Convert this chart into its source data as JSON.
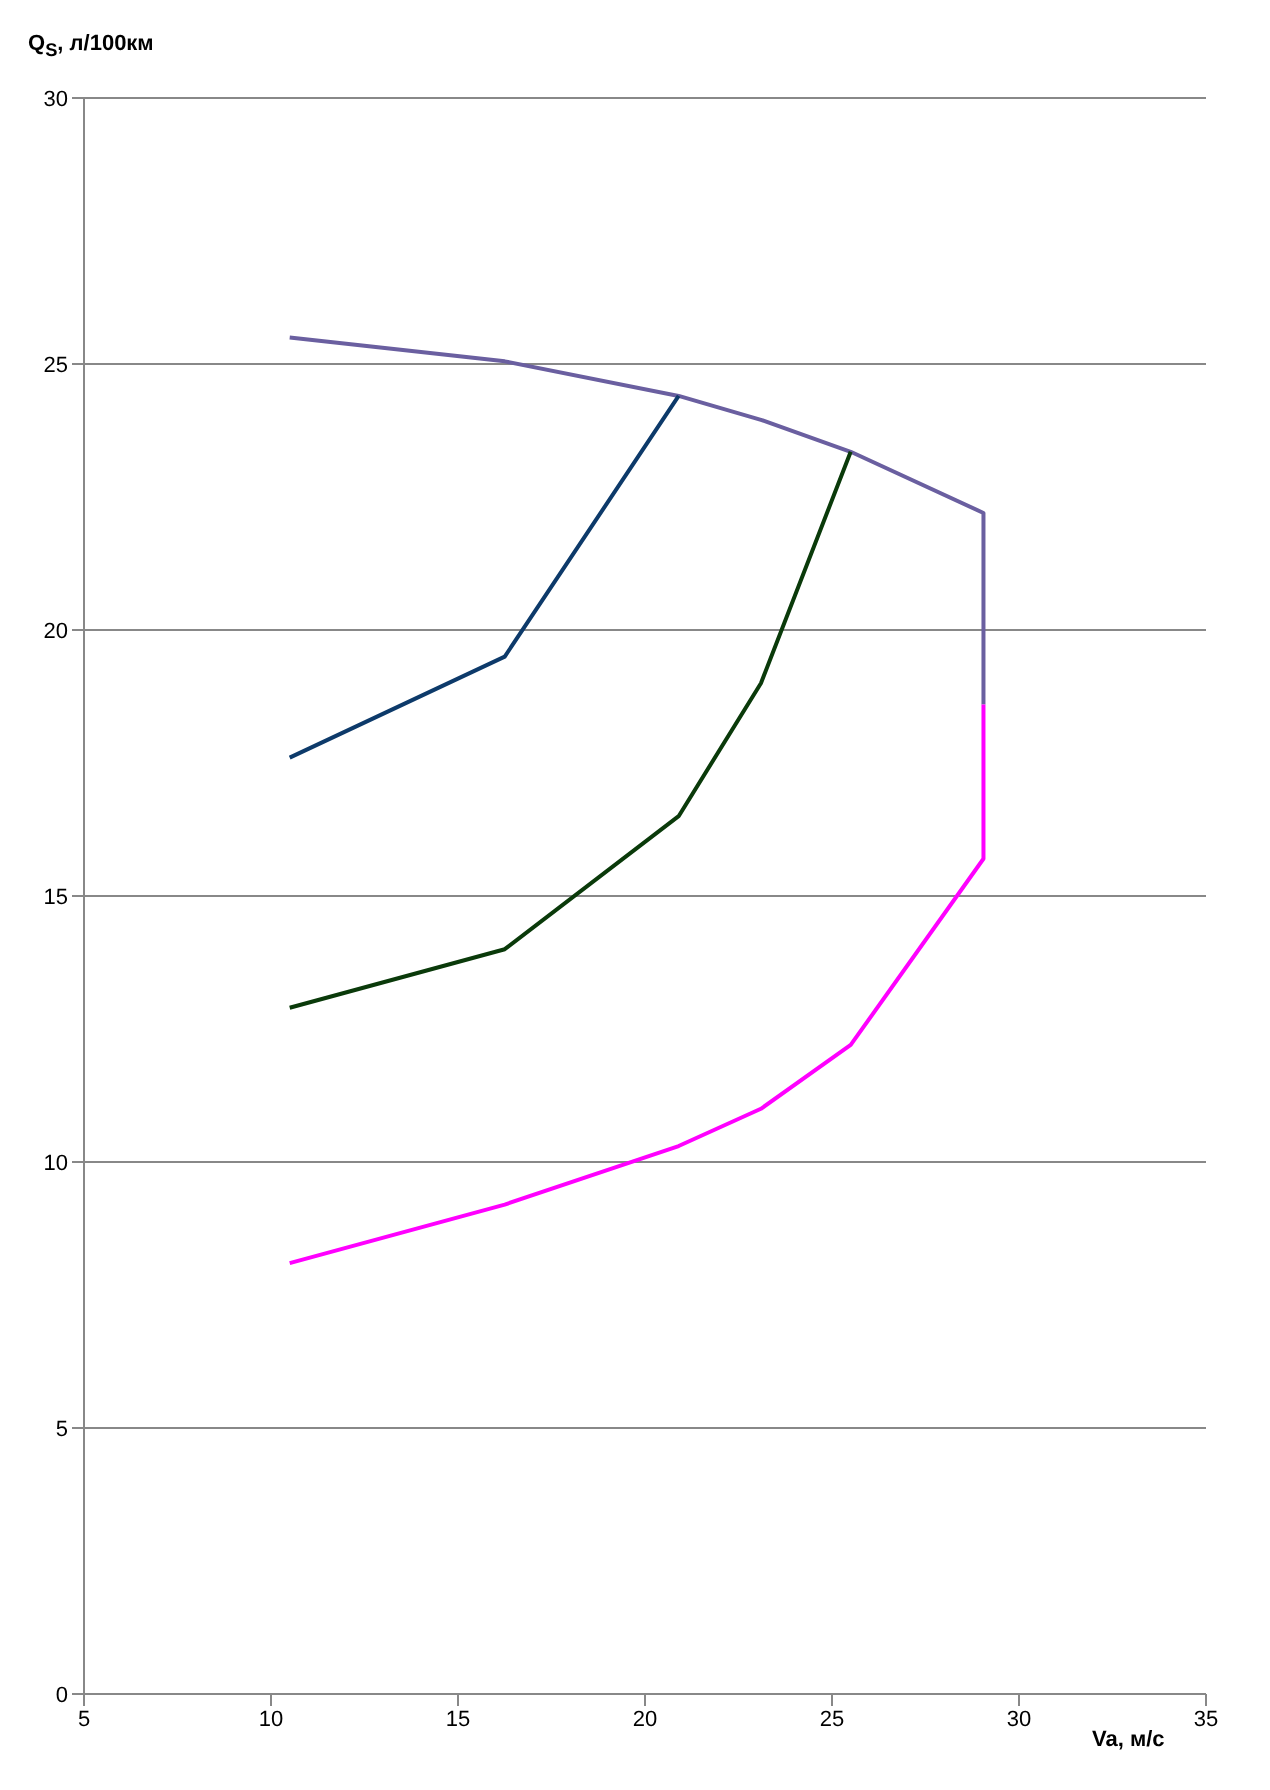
{
  "chart_data": {
    "type": "line",
    "xlabel": "Va, м/с",
    "ylabel": "Q$_{S}$, л/100км",
    "xlim": [
      5,
      35
    ],
    "xticks": [
      5,
      10,
      15,
      20,
      25,
      30,
      35
    ],
    "ylim": [
      0,
      30
    ],
    "yticks": [
      0,
      5,
      10,
      15,
      20,
      25,
      30
    ],
    "grid": "y",
    "legend": false,
    "marker": "none",
    "line_style": "solid",
    "series": [
      {
        "color": "#6a5fa0",
        "x": [
          10.5,
          16.25,
          20.9,
          23.1,
          25.5,
          29.05,
          29.05
        ],
        "values": [
          25.5,
          25.05,
          24.4,
          23.95,
          23.35,
          22.2,
          18.6
        ]
      },
      {
        "color": "#0d3a6a",
        "x": [
          10.5,
          16.25,
          20.9
        ],
        "values": [
          17.6,
          19.5,
          24.4
        ]
      },
      {
        "color": "#0a3a0a",
        "x": [
          10.5,
          16.25,
          20.9,
          23.1,
          25.5
        ],
        "values": [
          12.9,
          14.0,
          16.5,
          19.0,
          23.35
        ]
      },
      {
        "color": "#ff00ff",
        "x": [
          10.5,
          16.25,
          20.9,
          23.1,
          25.5,
          29.05,
          29.05
        ],
        "values": [
          8.1,
          9.2,
          10.3,
          11.0,
          12.2,
          15.7,
          18.6
        ]
      }
    ]
  }
}
